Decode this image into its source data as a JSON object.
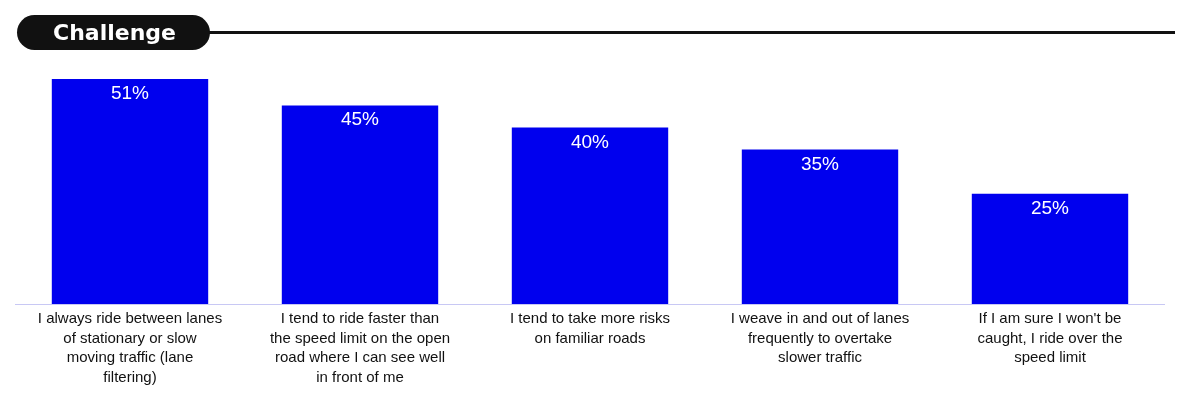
{
  "chart_data": {
    "type": "bar",
    "title": "Challenge",
    "categories": [
      "I always ride between lanes of stationary or slow moving traffic (lane filtering)",
      "I tend to ride faster than the speed limit on the open road where I can see well in front of me",
      "I tend to take more risks on familiar roads",
      "I weave in and out of lanes frequently to overtake slower traffic",
      "If I am sure I won't be caught, I ride over the speed limit"
    ],
    "values": [
      51,
      45,
      40,
      35,
      25
    ],
    "value_labels": [
      "51%",
      "45%",
      "40%",
      "35%",
      "25%"
    ],
    "color": "#0000ee",
    "grid": false,
    "legend": false
  }
}
